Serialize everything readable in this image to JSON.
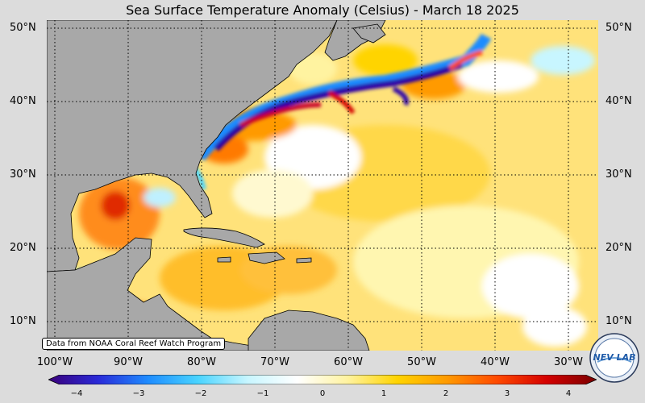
{
  "title": "Sea Surface Temperature Anomaly (Celsius) - March 18 2025",
  "credit": "Data from NOAA Coral Reef Watch Program",
  "map": {
    "lat_labels": [
      "50°N",
      "40°N",
      "30°N",
      "20°N",
      "10°N"
    ],
    "lon_labels": [
      "100°W",
      "90°W",
      "80°W",
      "70°W",
      "60°W",
      "50°W",
      "40°W",
      "30°W"
    ],
    "land_color": "#a8a8a8",
    "gridline_style": "dotted"
  },
  "colorbar": {
    "ticks": [
      "−4",
      "−3",
      "−2",
      "−1",
      "0",
      "1",
      "2",
      "3",
      "4"
    ],
    "min": -4,
    "max": 4,
    "colors": [
      "#3a007a",
      "#2a2ad8",
      "#1e8cff",
      "#4ad4ff",
      "#c8f6ff",
      "#ffffff",
      "#fff3a0",
      "#ffd400",
      "#ff9a00",
      "#ff4a00",
      "#d40000",
      "#7a0000"
    ]
  },
  "logo": {
    "text": "NEV LAB"
  }
}
